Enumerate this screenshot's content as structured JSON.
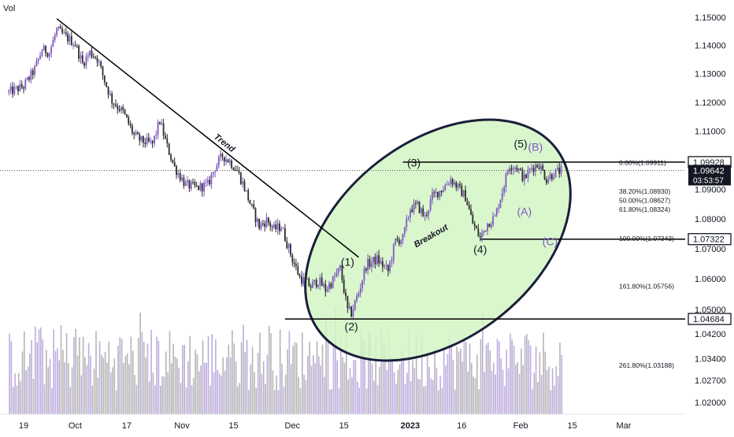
{
  "chart_data": {
    "type": "candlestick",
    "volume_label": "Vol",
    "x_axis": {
      "ticks": [
        {
          "label": "19",
          "date": "2022-09-19"
        },
        {
          "label": "Oct",
          "date": "2022-10-03"
        },
        {
          "label": "17",
          "date": "2022-10-17"
        },
        {
          "label": "Nov",
          "date": "2022-11-01"
        },
        {
          "label": "15",
          "date": "2022-11-15"
        },
        {
          "label": "Dec",
          "date": "2022-12-01"
        },
        {
          "label": "15",
          "date": "2022-12-15"
        },
        {
          "label": "2023",
          "date": "2023-01-02",
          "bold": true
        },
        {
          "label": "16",
          "date": "2023-01-16"
        },
        {
          "label": "Feb",
          "date": "2023-02-01"
        },
        {
          "label": "15",
          "date": "2023-02-15"
        },
        {
          "label": "Mar",
          "date": "2023-03-01"
        }
      ],
      "range": [
        "2022-09-15",
        "2023-03-08"
      ]
    },
    "y_axis": {
      "ticks": [
        "1.15000",
        "1.14000",
        "1.13000",
        "1.12000",
        "1.11000",
        "1.09000",
        "1.08000",
        "1.07000",
        "1.06000",
        "1.05000",
        "1.04200",
        "1.03400",
        "1.02700",
        "1.02000"
      ],
      "scale": "log",
      "ylim": [
        1.0165,
        1.1545
      ]
    },
    "price_tags": [
      {
        "value": "1.09928",
        "price": 1.09928,
        "style": "outline"
      },
      {
        "value": "1.09642",
        "price": 1.09642,
        "style": "dark",
        "countdown": "03:53:57"
      },
      {
        "value": "1.07322",
        "price": 1.07322,
        "style": "outline"
      },
      {
        "value": "1.04684",
        "price": 1.04684,
        "style": "outline"
      }
    ],
    "last_price": 1.09642,
    "fibonacci_levels": [
      {
        "label": "0.00%(1.09911)",
        "price": 1.09911
      },
      {
        "label": "38.20%(1.08930)",
        "price": 1.0893
      },
      {
        "label": "50.00%(1.08627)",
        "price": 1.08627
      },
      {
        "label": "61.80%(1.08324)",
        "price": 1.08324
      },
      {
        "label": "100.00%(1.07343)",
        "price": 1.07343
      },
      {
        "label": "161.80%(1.05756)",
        "price": 1.05756
      },
      {
        "label": "261.80%(1.03188)",
        "price": 1.03188
      }
    ],
    "horizontal_lines": [
      {
        "price": 1.09928,
        "from": "2022-12-31"
      },
      {
        "price": 1.07322,
        "from": "2023-01-21"
      },
      {
        "price": 1.04684,
        "from": "2022-11-29"
      }
    ],
    "trend_line": {
      "label": "Trend",
      "from": {
        "date": "2022-09-28",
        "price": 1.1495
      },
      "to": {
        "date": "2022-12-19",
        "price": 1.0672
      }
    },
    "wave_labels": [
      {
        "text": "(1)",
        "date": "2022-12-16",
        "price": 1.0643,
        "color": "#131722"
      },
      {
        "text": "(2)",
        "date": "2022-12-17",
        "price": 1.0432,
        "color": "#131722"
      },
      {
        "text": "(3)",
        "date": "2023-01-03",
        "price": 1.0978,
        "color": "#131722"
      },
      {
        "text": "(4)",
        "date": "2023-01-21",
        "price": 1.0686,
        "color": "#131722"
      },
      {
        "text": "(5)",
        "date": "2023-02-01",
        "price": 1.1042,
        "color": "#131722"
      },
      {
        "text": "(B)",
        "date": "2023-02-05",
        "price": 1.1032,
        "color": "#7e57c2"
      },
      {
        "text": "(A)",
        "date": "2023-02-02",
        "price": 1.0812,
        "color": "#7e57c2"
      },
      {
        "text": "(C)",
        "date": "2023-02-09",
        "price": 1.0712,
        "color": "#7e57c2"
      }
    ],
    "annotations": [
      {
        "text": "Breakout",
        "date": "2023-01-08",
        "price": 1.0735,
        "rotation": -30
      }
    ],
    "close_path": [
      {
        "date": "2022-09-15",
        "close": 1.1235
      },
      {
        "date": "2022-09-19",
        "close": 1.1255
      },
      {
        "date": "2022-09-22",
        "close": 1.1315
      },
      {
        "date": "2022-09-24",
        "close": 1.1385
      },
      {
        "date": "2022-09-26",
        "close": 1.1375
      },
      {
        "date": "2022-09-28",
        "close": 1.1455
      },
      {
        "date": "2022-10-01",
        "close": 1.1425
      },
      {
        "date": "2022-10-03",
        "close": 1.1405
      },
      {
        "date": "2022-10-05",
        "close": 1.1335
      },
      {
        "date": "2022-10-07",
        "close": 1.1375
      },
      {
        "date": "2022-10-09",
        "close": 1.1355
      },
      {
        "date": "2022-10-11",
        "close": 1.1275
      },
      {
        "date": "2022-10-13",
        "close": 1.1205
      },
      {
        "date": "2022-10-16",
        "close": 1.1165
      },
      {
        "date": "2022-10-19",
        "close": 1.1085
      },
      {
        "date": "2022-10-21",
        "close": 1.1065
      },
      {
        "date": "2022-10-24",
        "close": 1.1055
      },
      {
        "date": "2022-10-26",
        "close": 1.1135
      },
      {
        "date": "2022-10-28",
        "close": 1.1045
      },
      {
        "date": "2022-10-30",
        "close": 1.0975
      },
      {
        "date": "2022-11-02",
        "close": 1.0915
      },
      {
        "date": "2022-11-05",
        "close": 1.0905
      },
      {
        "date": "2022-11-08",
        "close": 1.0915
      },
      {
        "date": "2022-11-10",
        "close": 1.0975
      },
      {
        "date": "2022-11-12",
        "close": 1.1015
      },
      {
        "date": "2022-11-14",
        "close": 1.0995
      },
      {
        "date": "2022-11-16",
        "close": 1.0965
      },
      {
        "date": "2022-11-18",
        "close": 1.0905
      },
      {
        "date": "2022-11-20",
        "close": 1.0835
      },
      {
        "date": "2022-11-22",
        "close": 1.0775
      },
      {
        "date": "2022-11-24",
        "close": 1.0795
      },
      {
        "date": "2022-11-26",
        "close": 1.0765
      },
      {
        "date": "2022-11-28",
        "close": 1.0775
      },
      {
        "date": "2022-12-01",
        "close": 1.0665
      },
      {
        "date": "2022-12-03",
        "close": 1.0605
      },
      {
        "date": "2022-12-06",
        "close": 1.0575
      },
      {
        "date": "2022-12-08",
        "close": 1.0595
      },
      {
        "date": "2022-12-10",
        "close": 1.0565
      },
      {
        "date": "2022-12-12",
        "close": 1.0595
      },
      {
        "date": "2022-12-14",
        "close": 1.0635
      },
      {
        "date": "2022-12-16",
        "close": 1.0495
      },
      {
        "date": "2022-12-17",
        "close": 1.0488
      },
      {
        "date": "2022-12-19",
        "close": 1.0555
      },
      {
        "date": "2022-12-21",
        "close": 1.0645
      },
      {
        "date": "2022-12-24",
        "close": 1.0665
      },
      {
        "date": "2022-12-27",
        "close": 1.0625
      },
      {
        "date": "2022-12-29",
        "close": 1.0725
      },
      {
        "date": "2022-12-31",
        "close": 1.0735
      },
      {
        "date": "2023-01-02",
        "close": 1.0835
      },
      {
        "date": "2023-01-04",
        "close": 1.0845
      },
      {
        "date": "2023-01-06",
        "close": 1.0805
      },
      {
        "date": "2023-01-08",
        "close": 1.0875
      },
      {
        "date": "2023-01-11",
        "close": 1.0905
      },
      {
        "date": "2023-01-13",
        "close": 1.0935
      },
      {
        "date": "2023-01-15",
        "close": 1.0905
      },
      {
        "date": "2023-01-17",
        "close": 1.0875
      },
      {
        "date": "2023-01-19",
        "close": 1.0785
      },
      {
        "date": "2023-01-21",
        "close": 1.0735
      },
      {
        "date": "2023-01-23",
        "close": 1.0785
      },
      {
        "date": "2023-01-25",
        "close": 1.0805
      },
      {
        "date": "2023-01-27",
        "close": 1.0895
      },
      {
        "date": "2023-01-29",
        "close": 1.0985
      },
      {
        "date": "2023-01-31",
        "close": 1.0975
      },
      {
        "date": "2023-02-02",
        "close": 1.0935
      },
      {
        "date": "2023-02-04",
        "close": 1.0975
      },
      {
        "date": "2023-02-06",
        "close": 1.0985
      },
      {
        "date": "2023-02-08",
        "close": 1.0935
      },
      {
        "date": "2023-02-10",
        "close": 1.0955
      },
      {
        "date": "2023-02-12",
        "close": 1.0964
      }
    ],
    "colors": {
      "bull": "#7e57c2",
      "bear": "#2b2b2b",
      "ellipse_fill": "#d4f5c4",
      "ellipse_stroke": "#1a1f3a",
      "volume_bull": "#b39ddb",
      "volume_bear": "#a8a8a8",
      "wave_secondary": "#7e57c2",
      "price_tag_dark": "#131722"
    }
  }
}
